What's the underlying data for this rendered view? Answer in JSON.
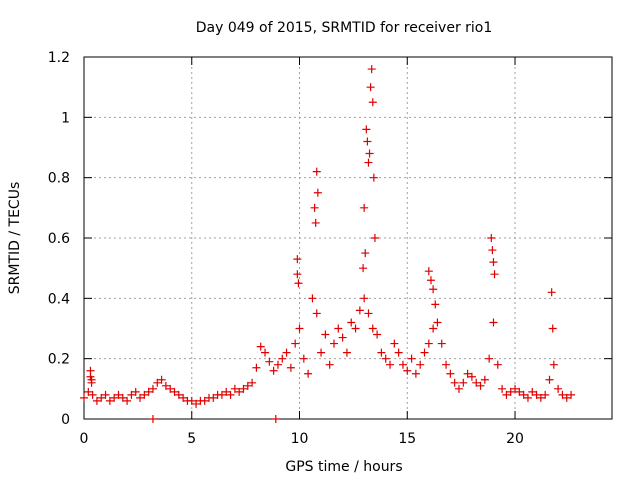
{
  "chart_data": {
    "type": "scatter",
    "title": "Day 049 of 2015, SRMTID for receiver rio1",
    "xlabel": "GPS time / hours",
    "ylabel": "SRMTID / TECUs",
    "xlim": [
      0,
      24.5
    ],
    "ylim": [
      0,
      1.2
    ],
    "x_ticks": [
      0,
      5,
      10,
      15,
      20
    ],
    "x_tick_labels": [
      "0",
      "5",
      "10",
      "15",
      "20"
    ],
    "y_ticks": [
      0,
      0.2,
      0.4,
      0.6,
      0.8,
      1.0,
      1.2
    ],
    "y_tick_labels": [
      "0",
      "0.2",
      "0.4",
      "0.6",
      "0.8",
      "1",
      "1.2"
    ],
    "grid": true,
    "marker": "plus",
    "color": "#e00000",
    "series": [
      {
        "name": "rio1",
        "x": [
          0.0,
          0.2,
          0.4,
          0.6,
          0.8,
          1.0,
          1.2,
          1.4,
          1.6,
          1.8,
          2.0,
          2.2,
          2.4,
          2.6,
          2.8,
          3.0,
          3.2,
          3.4,
          3.6,
          3.8,
          4.0,
          4.2,
          4.4,
          4.6,
          4.8,
          5.0,
          5.2,
          5.4,
          5.6,
          5.8,
          6.0,
          6.2,
          6.4,
          6.6,
          6.8,
          7.0,
          7.2,
          7.4,
          7.6,
          7.8,
          8.0,
          8.2,
          8.4,
          8.6,
          8.8,
          9.0,
          9.2,
          9.4,
          9.6,
          9.8,
          10.0,
          10.2,
          10.4,
          10.6,
          10.8,
          11.0,
          11.2,
          11.4,
          11.6,
          11.8,
          12.0,
          12.2,
          12.4,
          12.6,
          12.8,
          13.0,
          13.2,
          13.4,
          13.6,
          13.8,
          14.0,
          14.2,
          14.4,
          14.6,
          14.8,
          15.0,
          15.2,
          15.4,
          15.6,
          15.8,
          16.0,
          16.2,
          16.4,
          16.6,
          16.8,
          17.0,
          17.2,
          17.4,
          17.6,
          17.8,
          18.0,
          18.2,
          18.4,
          18.6,
          18.8,
          19.0,
          19.2,
          19.4,
          19.6,
          19.8,
          20.0,
          20.2,
          20.4,
          20.6,
          20.8,
          21.0,
          21.2,
          21.4,
          21.6,
          21.8,
          22.0,
          22.2,
          22.4,
          22.6,
          0.3,
          0.3,
          0.35,
          0.35,
          9.9,
          9.9,
          9.95,
          10.7,
          10.75,
          10.8,
          10.85,
          13.1,
          13.15,
          13.2,
          13.25,
          13.3,
          13.35,
          13.4,
          13.45,
          13.5,
          13.0,
          13.05,
          12.95,
          18.9,
          18.95,
          19.0,
          19.05,
          21.7,
          21.75,
          16.0,
          16.1,
          16.2,
          16.3,
          3.2,
          8.9
        ],
        "y": [
          0.07,
          0.09,
          0.08,
          0.06,
          0.07,
          0.08,
          0.06,
          0.07,
          0.08,
          0.07,
          0.06,
          0.08,
          0.09,
          0.07,
          0.08,
          0.09,
          0.1,
          0.12,
          0.13,
          0.11,
          0.1,
          0.09,
          0.08,
          0.07,
          0.06,
          0.06,
          0.05,
          0.06,
          0.06,
          0.07,
          0.07,
          0.08,
          0.08,
          0.09,
          0.08,
          0.1,
          0.09,
          0.1,
          0.11,
          0.12,
          0.17,
          0.24,
          0.22,
          0.19,
          0.16,
          0.18,
          0.2,
          0.22,
          0.17,
          0.25,
          0.3,
          0.2,
          0.15,
          0.4,
          0.35,
          0.22,
          0.28,
          0.18,
          0.25,
          0.3,
          0.27,
          0.22,
          0.32,
          0.3,
          0.36,
          0.4,
          0.35,
          0.3,
          0.28,
          0.22,
          0.2,
          0.18,
          0.25,
          0.22,
          0.18,
          0.16,
          0.2,
          0.15,
          0.18,
          0.22,
          0.25,
          0.3,
          0.32,
          0.25,
          0.18,
          0.15,
          0.12,
          0.1,
          0.12,
          0.15,
          0.14,
          0.12,
          0.11,
          0.13,
          0.2,
          0.32,
          0.18,
          0.1,
          0.08,
          0.09,
          0.1,
          0.09,
          0.08,
          0.07,
          0.09,
          0.08,
          0.07,
          0.08,
          0.13,
          0.18,
          0.1,
          0.08,
          0.07,
          0.08,
          0.16,
          0.14,
          0.13,
          0.12,
          0.53,
          0.48,
          0.45,
          0.7,
          0.65,
          0.82,
          0.75,
          0.96,
          0.92,
          0.85,
          0.88,
          1.1,
          1.16,
          1.05,
          0.8,
          0.6,
          0.7,
          0.55,
          0.5,
          0.6,
          0.56,
          0.52,
          0.48,
          0.42,
          0.3,
          0.49,
          0.46,
          0.43,
          0.38,
          0.0,
          0.0
        ]
      }
    ]
  }
}
